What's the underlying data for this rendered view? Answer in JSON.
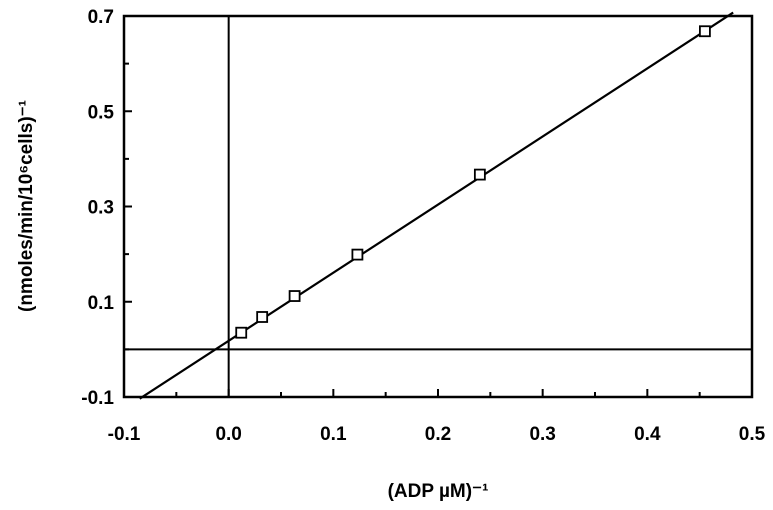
{
  "chart_data": {
    "type": "scatter",
    "title": "",
    "xlabel": "(ADP µM)⁻¹",
    "ylabel": "(nmoles/min/10⁶cells)⁻¹",
    "xlim": [
      -0.1,
      0.5
    ],
    "ylim": [
      -0.1,
      0.7
    ],
    "x_ticks": [
      "-0.1",
      "0.0",
      "0.1",
      "0.2",
      "0.3",
      "0.4",
      "0.5"
    ],
    "y_ticks": [
      "-0.1",
      "0.1",
      "0.3",
      "0.5",
      "0.7"
    ],
    "grid": false,
    "legend": "none",
    "marker": "open-square",
    "points": [
      {
        "x": 0.012,
        "y": 0.035
      },
      {
        "x": 0.032,
        "y": 0.068
      },
      {
        "x": 0.063,
        "y": 0.112
      },
      {
        "x": 0.123,
        "y": 0.199
      },
      {
        "x": 0.24,
        "y": 0.367
      },
      {
        "x": 0.455,
        "y": 0.668
      }
    ],
    "fit_line": {
      "slope": 1.43,
      "intercept": 0.018,
      "x_from": -0.085,
      "x_to": 0.482
    },
    "reference_lines": {
      "x_zero": 0,
      "y_zero": 0
    }
  }
}
